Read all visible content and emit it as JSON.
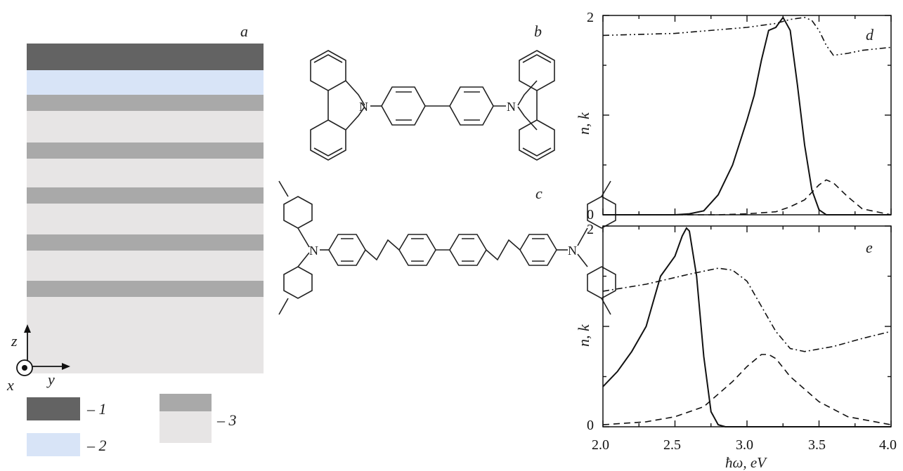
{
  "panels": {
    "a": {
      "label": "a"
    },
    "b": {
      "label": "b"
    },
    "c": {
      "label": "c"
    },
    "d": {
      "label": "d"
    },
    "e": {
      "label": "e"
    }
  },
  "axes_text": {
    "x": "x",
    "y": "y",
    "z": "z"
  },
  "legend": {
    "item1": "– 1",
    "item2": "– 2",
    "item3": "– 3"
  },
  "colors": {
    "layer1": "#636363",
    "layer2": "#d8e4f7",
    "layer3_dark": "#a9a9a9",
    "layer3_light": "#e7e5e5"
  },
  "atoms": {
    "n": "N"
  },
  "chart_data": [
    {
      "type": "line",
      "panel": "d",
      "ylabel": "n, k",
      "xlim": [
        2.0,
        4.0
      ],
      "ylim": [
        0,
        2
      ],
      "yticks": [
        "0",
        "2"
      ],
      "series": [
        {
          "style": "solid",
          "x": [
            2.0,
            2.5,
            2.6,
            2.7,
            2.8,
            2.9,
            3.0,
            3.05,
            3.1,
            3.15,
            3.2,
            3.25,
            3.3,
            3.35,
            3.4,
            3.45,
            3.5,
            3.55,
            4.0
          ],
          "y": [
            0,
            0,
            0.01,
            0.04,
            0.2,
            0.5,
            0.95,
            1.2,
            1.55,
            1.85,
            1.88,
            1.98,
            1.85,
            1.3,
            0.7,
            0.25,
            0.05,
            0,
            0
          ]
        },
        {
          "style": "dash-dot",
          "x": [
            2.0,
            2.5,
            3.0,
            3.2,
            3.3,
            3.4,
            3.45,
            3.5,
            3.55,
            3.6,
            3.7,
            3.8,
            4.0
          ],
          "y": [
            1.8,
            1.82,
            1.88,
            1.92,
            1.96,
            1.98,
            1.95,
            1.85,
            1.7,
            1.6,
            1.62,
            1.65,
            1.68
          ]
        },
        {
          "style": "dashed",
          "x": [
            2.0,
            2.8,
            3.0,
            3.2,
            3.3,
            3.4,
            3.5,
            3.55,
            3.6,
            3.7,
            3.8,
            4.0
          ],
          "y": [
            0,
            0,
            0.01,
            0.03,
            0.08,
            0.15,
            0.3,
            0.35,
            0.32,
            0.18,
            0.06,
            0
          ]
        }
      ]
    },
    {
      "type": "line",
      "panel": "e",
      "xlabel": "ħω, eV",
      "ylabel": "n, k",
      "xlim": [
        2.0,
        4.0
      ],
      "ylim": [
        0,
        2
      ],
      "xticks": [
        "2.0",
        "2.5",
        "3.0",
        "3.5",
        "4.0"
      ],
      "yticks": [
        "0",
        "2"
      ],
      "series": [
        {
          "style": "solid",
          "x": [
            2.0,
            2.1,
            2.2,
            2.3,
            2.4,
            2.45,
            2.5,
            2.55,
            2.58,
            2.6,
            2.65,
            2.7,
            2.75,
            2.8,
            2.85,
            4.0
          ],
          "y": [
            0.4,
            0.55,
            0.75,
            1.0,
            1.5,
            1.6,
            1.7,
            1.9,
            1.98,
            1.95,
            1.5,
            0.7,
            0.15,
            0.02,
            0,
            0
          ]
        },
        {
          "style": "dash-dot",
          "x": [
            2.0,
            2.3,
            2.6,
            2.8,
            2.9,
            3.0,
            3.1,
            3.2,
            3.3,
            3.4,
            3.6,
            3.8,
            4.0
          ],
          "y": [
            1.35,
            1.42,
            1.52,
            1.58,
            1.56,
            1.45,
            1.2,
            0.95,
            0.78,
            0.75,
            0.8,
            0.88,
            0.95
          ]
        },
        {
          "style": "dashed",
          "x": [
            2.0,
            2.3,
            2.5,
            2.7,
            2.9,
            3.0,
            3.1,
            3.15,
            3.2,
            3.3,
            3.5,
            3.7,
            4.0
          ],
          "y": [
            0.02,
            0.05,
            0.1,
            0.2,
            0.45,
            0.6,
            0.72,
            0.72,
            0.68,
            0.5,
            0.25,
            0.1,
            0.02
          ]
        }
      ]
    }
  ]
}
